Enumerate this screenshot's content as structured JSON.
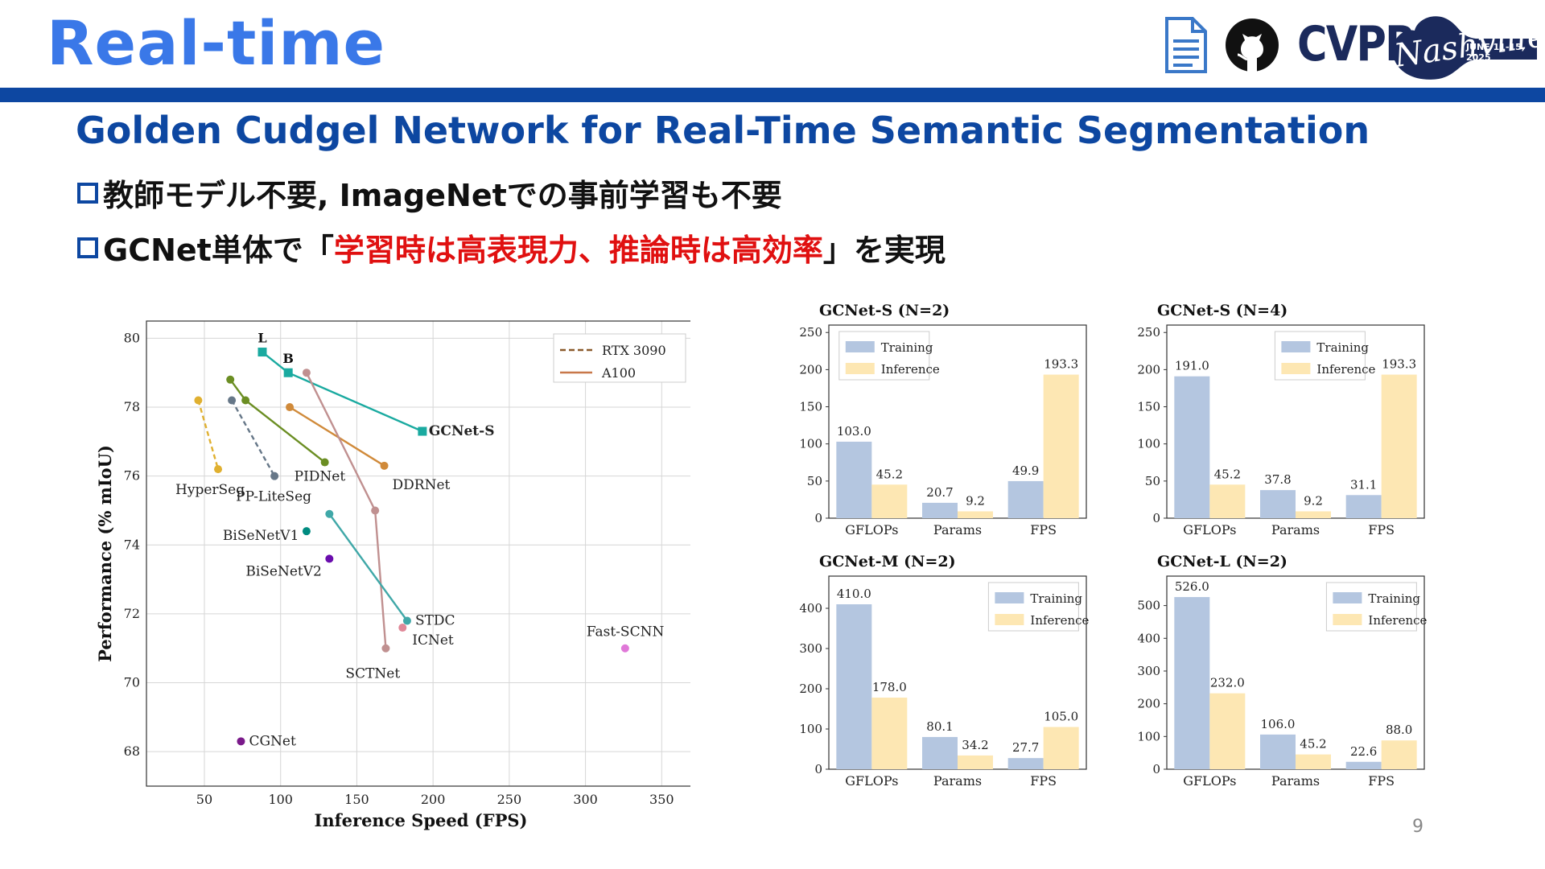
{
  "slide": {
    "title": "Real-time",
    "subtitle": "Golden Cudgel Network for Real-Time Semantic Segmentation",
    "bullets": [
      {
        "text": "教師モデル不要, ImageNetでの事前学習も不要"
      },
      {
        "before": "GCNet単体で「",
        "highlight": "学習時は高表現力、推論時は高効率",
        "after": "」を実現"
      }
    ],
    "page_number": "9",
    "colors": {
      "title": "#3a78e8",
      "bar": "#0d47a1",
      "subtitle": "#0d47a1",
      "highlight": "#e01010"
    }
  },
  "header_icons": {
    "paper": "document-icon",
    "code": "github-icon",
    "conference": {
      "name": "CVPR",
      "script": "Nashville",
      "dates": "JUNE 11-15, 2025"
    }
  },
  "chart_data": [
    {
      "type": "scatter",
      "xlabel": "Inference Speed (FPS)",
      "ylabel": "Performance (% mIoU)",
      "xlim": [
        12,
        372
      ],
      "ylim": [
        67,
        80.5
      ],
      "xticks": [
        50,
        100,
        150,
        200,
        250,
        300,
        350
      ],
      "yticks": [
        68,
        70,
        72,
        74,
        76,
        78,
        80
      ],
      "grid": true,
      "legend": {
        "position": "top-right",
        "entries": [
          {
            "label": "RTX 3090",
            "style": "dashed",
            "color": "#8a5a2b"
          },
          {
            "label": "A100",
            "style": "solid",
            "color": "#c8784a"
          }
        ]
      },
      "series": [
        {
          "name": "GCNet-S",
          "color": "#1aaaa0",
          "marker": "square",
          "points": [
            [
              88,
              79.6
            ],
            [
              105,
              79.0
            ],
            [
              193,
              77.3
            ]
          ],
          "point_labels": [
            "L",
            "B",
            ""
          ]
        },
        {
          "name": "HyperSeg",
          "color": "#e0b030",
          "dashed": true,
          "points": [
            [
              46,
              78.2
            ],
            [
              59,
              76.2
            ]
          ]
        },
        {
          "name": "PP-LiteSeg",
          "color": "#667788",
          "dashed": true,
          "points": [
            [
              68,
              78.2
            ],
            [
              96,
              76.0
            ]
          ]
        },
        {
          "name": "PIDNet",
          "color": "#6b8e23",
          "points": [
            [
              67,
              78.8
            ],
            [
              77,
              78.2
            ],
            [
              129,
              76.4
            ]
          ]
        },
        {
          "name": "DDRNet",
          "color": "#d08a3a",
          "points": [
            [
              106,
              78.0
            ],
            [
              168,
              76.3
            ]
          ]
        },
        {
          "name": "SCTNet",
          "color": "#c09090",
          "points": [
            [
              117,
              79.0
            ],
            [
              162,
              75.0
            ],
            [
              169,
              71.0
            ]
          ]
        },
        {
          "name": "STDC",
          "color": "#40a8a8",
          "points": [
            [
              132,
              74.9
            ],
            [
              183,
              71.8
            ]
          ]
        },
        {
          "name": "ICNet",
          "color": "#e08898",
          "points": [
            [
              180,
              71.6
            ]
          ]
        },
        {
          "name": "BiSeNetV1",
          "color": "#008b80",
          "points": [
            [
              117,
              74.4
            ]
          ]
        },
        {
          "name": "BiSeNetV2",
          "color": "#6a0dad",
          "points": [
            [
              132,
              73.6
            ]
          ]
        },
        {
          "name": "Fast-SCNN",
          "color": "#e078d8",
          "points": [
            [
              326,
              71.0
            ]
          ]
        },
        {
          "name": "CGNet",
          "color": "#7a1a8a",
          "points": [
            [
              74,
              68.3
            ]
          ]
        }
      ]
    },
    {
      "type": "bar",
      "title": "GCNet-S (N=2)",
      "categories": [
        "GFLOPs",
        "Params",
        "FPS"
      ],
      "series": [
        {
          "name": "Training",
          "values": [
            103.0,
            20.7,
            49.9
          ]
        },
        {
          "name": "Inference",
          "values": [
            45.2,
            9.2,
            193.3
          ]
        }
      ],
      "value_labels": [
        [
          "103.0",
          "20.7",
          "49.9"
        ],
        [
          "45.2",
          "9.2",
          "193.3"
        ]
      ],
      "ylim": [
        0,
        260
      ],
      "yticks": [
        0,
        50,
        100,
        150,
        200,
        250
      ],
      "legend": "top-left"
    },
    {
      "type": "bar",
      "title": "GCNet-S (N=4)",
      "categories": [
        "GFLOPs",
        "Params",
        "FPS"
      ],
      "series": [
        {
          "name": "Training",
          "values": [
            191.0,
            37.8,
            31.1
          ]
        },
        {
          "name": "Inference",
          "values": [
            45.2,
            9.2,
            193.3
          ]
        }
      ],
      "value_labels": [
        [
          "191.0",
          "37.8",
          "31.1"
        ],
        [
          "45.2",
          "9.2",
          "193.3"
        ]
      ],
      "ylim": [
        0,
        260
      ],
      "yticks": [
        0,
        50,
        100,
        150,
        200,
        250
      ],
      "legend": "top-center"
    },
    {
      "type": "bar",
      "title": "GCNet-M (N=2)",
      "categories": [
        "GFLOPs",
        "Params",
        "FPS"
      ],
      "series": [
        {
          "name": "Training",
          "values": [
            410.0,
            80.1,
            27.7
          ]
        },
        {
          "name": "Inference",
          "values": [
            178.0,
            34.2,
            105.0
          ]
        }
      ],
      "value_labels": [
        [
          "410.0",
          "80.1",
          "27.7"
        ],
        [
          "178.0",
          "34.2",
          "105.0"
        ]
      ],
      "ylim": [
        0,
        480
      ],
      "yticks": [
        0,
        100,
        200,
        300,
        400
      ],
      "legend": "top-right"
    },
    {
      "type": "bar",
      "title": "GCNet-L (N=2)",
      "categories": [
        "GFLOPs",
        "Params",
        "FPS"
      ],
      "series": [
        {
          "name": "Training",
          "values": [
            526.0,
            106.0,
            22.6
          ]
        },
        {
          "name": "Inference",
          "values": [
            232.0,
            45.2,
            88.0
          ]
        }
      ],
      "value_labels": [
        [
          "526.0",
          "106.0",
          "22.6"
        ],
        [
          "232.0",
          "45.2",
          "88.0"
        ]
      ],
      "ylim": [
        0,
        590
      ],
      "yticks": [
        0,
        100,
        200,
        300,
        400,
        500
      ],
      "legend": "top-right"
    }
  ]
}
